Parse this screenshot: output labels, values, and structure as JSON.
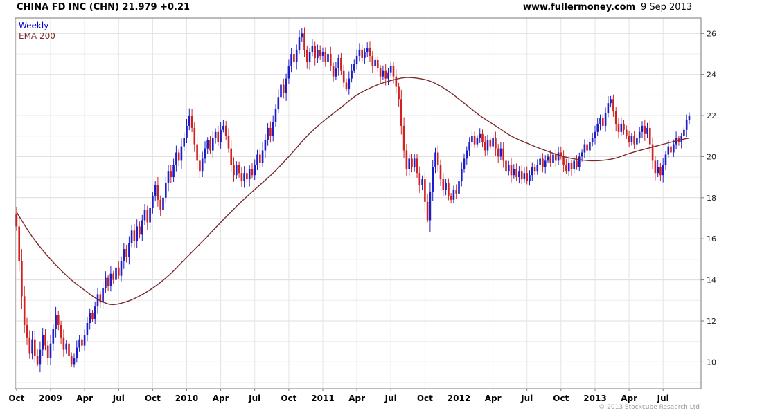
{
  "header": {
    "title": "CHINA FD INC (CHN) 21.979 +0.21",
    "website": "www.fullermoney.com",
    "date": "9 Sep 2013"
  },
  "legend": {
    "timeframe": "Weekly",
    "ema": "EMA 200"
  },
  "footer": {
    "copyright": "© 2013 Stockcube Research Ltd"
  },
  "colors": {
    "up": "#1c1cc8",
    "down": "#d02020",
    "ema": "#7a2a2a",
    "legend_timeframe": "#0000cc",
    "legend_ema": "#7a2a2a",
    "grid_major": "#dcdcdc",
    "grid_minor": "#ececec",
    "grid_vertical": "#e4e4e4",
    "border": "#7a7a7a",
    "axis_text": "#222222",
    "tick_text": "#000000"
  },
  "chart_data": {
    "type": "candlestick",
    "symbol": "CHINA FD INC (CHN)",
    "last_price": 21.979,
    "change": "+0.21",
    "interval": "Weekly",
    "overlay": "EMA 200",
    "ylim": [
      8.7,
      26.75
    ],
    "y_ticks_labeled": [
      10,
      12,
      14,
      16,
      18,
      20,
      22,
      24,
      26
    ],
    "y_grid_step": 1,
    "x_tick_labels": [
      "Oct",
      "2009",
      "Apr",
      "Jul",
      "Oct",
      "2010",
      "Apr",
      "Jul",
      "Oct",
      "2011",
      "Apr",
      "Jul",
      "Oct",
      "2012",
      "Apr",
      "Jul",
      "Oct",
      "2013",
      "Apr",
      "Jul"
    ],
    "x_tick_weeks": [
      0,
      13,
      26,
      39,
      52,
      65,
      78,
      91,
      104,
      117,
      130,
      143,
      156,
      169,
      182,
      195,
      208,
      221,
      234,
      247
    ],
    "first_open": 17.2,
    "closes": [
      16.6,
      14.9,
      13.2,
      11.8,
      11.2,
      10.4,
      11.1,
      10.3,
      9.9,
      10.6,
      11.3,
      10.8,
      10.2,
      10.9,
      11.6,
      12.3,
      11.8,
      11.2,
      10.6,
      10.9,
      10.3,
      9.9,
      10.2,
      10.7,
      11.1,
      10.8,
      11.3,
      11.9,
      12.4,
      12.1,
      12.7,
      13.3,
      12.9,
      13.6,
      14.1,
      13.7,
      14.3,
      14.0,
      14.6,
      14.2,
      14.9,
      15.5,
      15.1,
      15.8,
      16.4,
      15.9,
      16.6,
      16.2,
      16.9,
      17.4,
      16.8,
      17.5,
      18.1,
      18.6,
      17.9,
      17.4,
      18.0,
      18.7,
      19.3,
      19.0,
      19.6,
      20.2,
      19.8,
      20.5,
      20.9,
      21.5,
      22.0,
      21.4,
      20.6,
      19.8,
      19.3,
      19.9,
      20.4,
      20.8,
      20.3,
      20.9,
      21.2,
      20.7,
      21.3,
      21.5,
      21.0,
      20.4,
      19.6,
      19.1,
      19.6,
      19.2,
      18.8,
      19.2,
      18.9,
      19.4,
      19.1,
      19.6,
      20.1,
      19.7,
      20.3,
      20.8,
      21.4,
      21.0,
      21.7,
      22.3,
      22.9,
      23.5,
      23.1,
      23.8,
      24.4,
      25.0,
      24.6,
      25.2,
      25.8,
      26.0,
      25.2,
      24.6,
      25.1,
      25.4,
      24.8,
      25.2,
      24.9,
      25.1,
      24.6,
      25.0,
      24.4,
      23.9,
      24.3,
      24.8,
      24.2,
      23.6,
      23.3,
      23.8,
      24.2,
      24.5,
      24.9,
      25.2,
      24.8,
      25.1,
      25.3,
      24.9,
      24.4,
      24.7,
      24.3,
      23.9,
      24.2,
      23.8,
      24.1,
      24.4,
      23.9,
      23.4,
      22.8,
      21.5,
      20.3,
      19.4,
      19.9,
      19.5,
      19.9,
      19.2,
      18.6,
      18.9,
      17.8,
      16.9,
      18.3,
      19.5,
      20.2,
      19.6,
      18.9,
      18.4,
      18.7,
      18.1,
      17.9,
      18.4,
      18.2,
      18.8,
      19.4,
      19.9,
      20.3,
      20.7,
      21.0,
      20.6,
      20.9,
      21.1,
      20.7,
      20.3,
      20.8,
      20.5,
      20.9,
      20.4,
      20.0,
      20.4,
      19.8,
      19.3,
      19.6,
      19.1,
      19.4,
      19.0,
      19.3,
      18.9,
      19.2,
      18.8,
      19.1,
      19.5,
      19.3,
      19.6,
      19.9,
      19.5,
      19.8,
      20.0,
      19.7,
      20.1,
      19.8,
      20.2,
      20.0,
      19.6,
      19.3,
      19.7,
      19.4,
      19.8,
      19.5,
      20.0,
      20.2,
      20.6,
      20.3,
      20.7,
      20.9,
      21.2,
      21.6,
      21.9,
      21.5,
      22.1,
      22.6,
      22.8,
      22.2,
      21.6,
      21.2,
      21.6,
      21.3,
      21.0,
      20.7,
      21.0,
      20.6,
      20.9,
      21.2,
      21.5,
      21.1,
      21.4,
      20.6,
      19.8,
      19.2,
      19.5,
      19.1,
      19.6,
      20.1,
      20.5,
      20.2,
      20.6,
      20.9,
      20.7,
      21.0,
      21.3,
      21.77,
      21.979
    ],
    "wick_overrides": {
      "8": {
        "low": 9.8
      },
      "21": {
        "low": 9.75
      },
      "109": {
        "high": 26.25
      },
      "157": {
        "low": 16.8
      },
      "227": {
        "high": 22.95
      },
      "244": {
        "low": 18.85
      },
      "257": {
        "high": 22.15
      }
    },
    "ema_points": [
      [
        0,
        17.3
      ],
      [
        6,
        16.1
      ],
      [
        13,
        15.0
      ],
      [
        20,
        14.1
      ],
      [
        26,
        13.5
      ],
      [
        31,
        13.05
      ],
      [
        36,
        12.8
      ],
      [
        41,
        12.9
      ],
      [
        46,
        13.15
      ],
      [
        52,
        13.6
      ],
      [
        58,
        14.2
      ],
      [
        65,
        15.1
      ],
      [
        72,
        16.0
      ],
      [
        78,
        16.8
      ],
      [
        85,
        17.7
      ],
      [
        91,
        18.4
      ],
      [
        98,
        19.2
      ],
      [
        104,
        20.0
      ],
      [
        111,
        21.0
      ],
      [
        117,
        21.7
      ],
      [
        124,
        22.4
      ],
      [
        130,
        23.0
      ],
      [
        137,
        23.45
      ],
      [
        143,
        23.7
      ],
      [
        149,
        23.85
      ],
      [
        156,
        23.75
      ],
      [
        161,
        23.5
      ],
      [
        166,
        23.1
      ],
      [
        171,
        22.6
      ],
      [
        177,
        22.0
      ],
      [
        183,
        21.5
      ],
      [
        189,
        21.0
      ],
      [
        196,
        20.6
      ],
      [
        202,
        20.3
      ],
      [
        209,
        20.0
      ],
      [
        215,
        19.85
      ],
      [
        221,
        19.8
      ],
      [
        228,
        19.9
      ],
      [
        234,
        20.15
      ],
      [
        241,
        20.4
      ],
      [
        247,
        20.6
      ],
      [
        253,
        20.8
      ],
      [
        257,
        20.9
      ]
    ]
  }
}
